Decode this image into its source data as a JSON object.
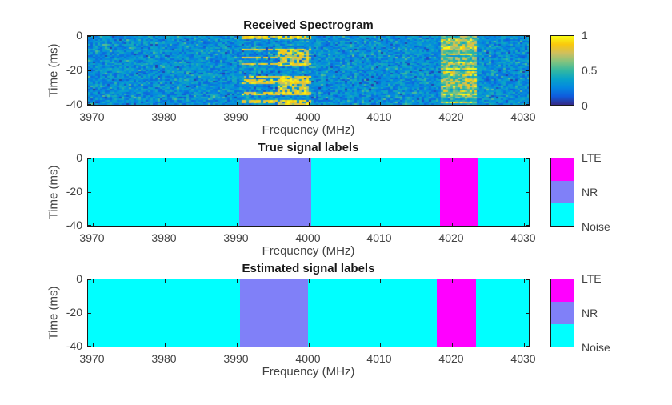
{
  "figure": {
    "background": "#ffffff",
    "colors": {
      "axis": "#1a1a1a",
      "text": "#424242",
      "title": "#171717",
      "lte": "#ff00ff",
      "nr": "#8080f8",
      "noise": "#00ffff"
    }
  },
  "chart_data": [
    {
      "type": "heatmap",
      "title": "Received Spectrogram",
      "xlabel": "Frequency (MHz)",
      "ylabel": "Time (ms)",
      "xlim": [
        3969.28,
        4030.72
      ],
      "ylim": [
        -40,
        0
      ],
      "xticks": [
        3970,
        3980,
        3990,
        4000,
        4010,
        4020,
        4030
      ],
      "yticks": [
        0,
        -20,
        -40
      ],
      "grid": false,
      "colormap": "parula",
      "colormap_stops": [
        "#352a87",
        "#0f5cdd",
        "#0487e0",
        "#08a3c9",
        "#33b8a1",
        "#81c37f",
        "#cfbf5f",
        "#f9c80e",
        "#f9fb15"
      ],
      "value_range": [
        0,
        1
      ],
      "colorbar_ticks": [
        "1",
        "0.5",
        "0"
      ],
      "noise_floor_value": 0.3,
      "signals": [
        {
          "name": "NR",
          "freq_range_mhz": [
            3990.7,
            4000.4
          ],
          "pattern": "intermittent wideband streaks",
          "hot_subband_mhz": [
            3995.7,
            4000.2
          ],
          "peak_value": 1.0
        },
        {
          "name": "LTE",
          "freq_range_mhz": [
            4018.6,
            4023.6
          ],
          "pattern": "dense bursts",
          "peak_value": 1.0
        }
      ]
    },
    {
      "type": "heatmap",
      "title": "True signal labels",
      "xlabel": "Frequency (MHz)",
      "ylabel": "Time (ms)",
      "xlim": [
        3969.28,
        4030.72
      ],
      "ylim": [
        -40,
        0
      ],
      "xticks": [
        3970,
        3980,
        3990,
        4000,
        4010,
        4020,
        4030
      ],
      "yticks": [
        0,
        -20,
        -40
      ],
      "grid": false,
      "background_class": "Noise",
      "regions": [
        {
          "class": "NR",
          "freq_range_mhz": [
            3990.4,
            4000.4
          ],
          "time_range_ms": [
            -40,
            0
          ]
        },
        {
          "class": "LTE",
          "freq_range_mhz": [
            4018.3,
            4023.6
          ],
          "time_range_ms": [
            -40,
            0
          ]
        }
      ],
      "legend": [
        {
          "label": "LTE",
          "color": "#ff00ff"
        },
        {
          "label": "NR",
          "color": "#8080f8"
        },
        {
          "label": "Noise",
          "color": "#00ffff"
        }
      ],
      "legend_position": "right"
    },
    {
      "type": "heatmap",
      "title": "Estimated signal labels",
      "xlabel": "Frequency (MHz)",
      "ylabel": "Time (ms)",
      "xlim": [
        3969.28,
        4030.72
      ],
      "ylim": [
        -40,
        0
      ],
      "xticks": [
        3970,
        3980,
        3990,
        4000,
        4010,
        4020,
        4030
      ],
      "yticks": [
        0,
        -20,
        -40
      ],
      "grid": false,
      "background_class": "Noise",
      "regions": [
        {
          "class": "NR",
          "freq_range_mhz": [
            3990.5,
            4000.0
          ],
          "time_range_ms": [
            -40,
            0
          ]
        },
        {
          "class": "LTE",
          "freq_range_mhz": [
            4017.9,
            4023.4
          ],
          "time_range_ms": [
            -40,
            0
          ]
        }
      ],
      "legend": [
        {
          "label": "LTE",
          "color": "#ff00ff"
        },
        {
          "label": "NR",
          "color": "#8080f8"
        },
        {
          "label": "Noise",
          "color": "#00ffff"
        }
      ],
      "legend_position": "right"
    }
  ]
}
